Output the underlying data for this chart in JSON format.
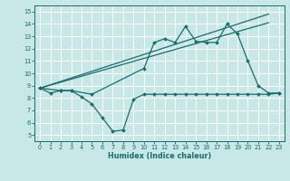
{
  "xlabel": "Humidex (Indice chaleur)",
  "xlim": [
    -0.5,
    23.5
  ],
  "ylim": [
    4.5,
    15.5
  ],
  "xticks": [
    0,
    1,
    2,
    3,
    4,
    5,
    6,
    7,
    8,
    9,
    10,
    11,
    12,
    13,
    14,
    15,
    16,
    17,
    18,
    19,
    20,
    21,
    22,
    23
  ],
  "yticks": [
    5,
    6,
    7,
    8,
    9,
    10,
    11,
    12,
    13,
    14,
    15
  ],
  "color": "#1a6b6b",
  "bg_color": "#c8e8e8",
  "grid_color": "#ffffff",
  "line_min": {
    "x": [
      0,
      1,
      2,
      3,
      4,
      5,
      6,
      7,
      8,
      9,
      10,
      11,
      12,
      13,
      14,
      15,
      16,
      17,
      18,
      19,
      20,
      21,
      22,
      23
    ],
    "y": [
      8.8,
      8.4,
      8.6,
      8.6,
      8.1,
      7.5,
      6.4,
      5.3,
      5.4,
      7.9,
      8.3,
      8.3,
      8.3,
      8.3,
      8.3,
      8.3,
      8.3,
      8.3,
      8.3,
      8.3,
      8.3,
      8.3,
      8.3,
      8.4
    ]
  },
  "line_max": {
    "x": [
      0,
      2,
      3,
      5,
      10,
      11,
      12,
      13,
      14,
      15,
      16,
      17,
      18,
      19,
      20,
      21,
      22,
      23
    ],
    "y": [
      8.8,
      8.6,
      8.6,
      8.3,
      10.4,
      12.5,
      12.8,
      12.5,
      13.8,
      12.6,
      12.5,
      12.5,
      14.0,
      13.2,
      11.0,
      9.0,
      8.4,
      8.4
    ]
  },
  "line_ref1": {
    "x": [
      0,
      22
    ],
    "y": [
      8.8,
      14.8
    ]
  },
  "line_ref2": {
    "x": [
      0,
      22
    ],
    "y": [
      8.8,
      14.1
    ]
  }
}
